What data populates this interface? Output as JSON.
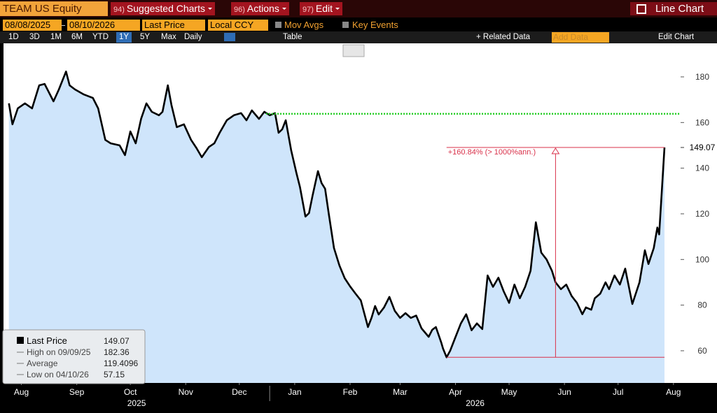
{
  "toolbar": {
    "security": "TEAM US Equity",
    "menus": [
      {
        "num": "94)",
        "label": "Suggested Charts"
      },
      {
        "num": "96)",
        "label": "Actions"
      },
      {
        "num": "97)",
        "label": "Edit"
      }
    ],
    "chart_type": "Line Chart",
    "start_date": "08/08/2025",
    "end_date": "08/10/2026",
    "field": "Last Price",
    "currency": "Local CCY",
    "mov_avgs": "Mov Avgs",
    "key_events": "Key Events",
    "periods": [
      "1D",
      "3D",
      "1M",
      "6M",
      "YTD",
      "1Y",
      "5Y",
      "Max"
    ],
    "selected": "1Y",
    "frequency": "Daily",
    "table": "Table",
    "related_data": "+ Related Data",
    "add_data": "Add Data",
    "edit_chart": "Edit Chart"
  },
  "chart_data": {
    "type": "line",
    "x": [
      "2025-08-08",
      "2025-08-10",
      "2025-08-13",
      "2025-08-17",
      "2025-08-21",
      "2025-08-25",
      "2025-08-28",
      "2025-09-02",
      "2025-09-05",
      "2025-09-09",
      "2025-09-11",
      "2025-09-14",
      "2025-09-19",
      "2025-09-24",
      "2025-09-27",
      "2025-10-01",
      "2025-10-04",
      "2025-10-09",
      "2025-10-12",
      "2025-10-15",
      "2025-10-18",
      "2025-10-21",
      "2025-10-24",
      "2025-10-27",
      "2025-10-31",
      "2025-11-02",
      "2025-11-05",
      "2025-11-07",
      "2025-11-10",
      "2025-11-14",
      "2025-11-18",
      "2025-11-21",
      "2025-11-24",
      "2025-11-28",
      "2025-12-01",
      "2025-12-04",
      "2025-12-08",
      "2025-12-12",
      "2025-12-16",
      "2025-12-19",
      "2025-12-22",
      "2025-12-26",
      "2025-12-29",
      "2026-01-01",
      "2026-01-04",
      "2026-01-06",
      "2026-01-08",
      "2026-01-10",
      "2026-01-13",
      "2026-01-16",
      "2026-01-18",
      "2026-01-21",
      "2026-01-23",
      "2026-01-25",
      "2026-01-28",
      "2026-01-30",
      "2026-02-01",
      "2026-02-03",
      "2026-02-06",
      "2026-02-09",
      "2026-02-12",
      "2026-02-15",
      "2026-02-18",
      "2026-02-21",
      "2026-02-25",
      "2026-02-27",
      "2026-03-01",
      "2026-03-03",
      "2026-03-06",
      "2026-03-09",
      "2026-03-12",
      "2026-03-15",
      "2026-03-18",
      "2026-03-21",
      "2026-03-24",
      "2026-03-27",
      "2026-03-31",
      "2026-04-02",
      "2026-04-04",
      "2026-04-07",
      "2026-04-08",
      "2026-04-10",
      "2026-04-12",
      "2026-04-15",
      "2026-04-18",
      "2026-04-21",
      "2026-04-24",
      "2026-04-27",
      "2026-04-30",
      "2026-05-03",
      "2026-05-06",
      "2026-05-09",
      "2026-05-12",
      "2026-05-15",
      "2026-05-18",
      "2026-05-21",
      "2026-05-24",
      "2026-05-27",
      "2026-05-30",
      "2026-06-02",
      "2026-06-05",
      "2026-06-08",
      "2026-06-10",
      "2026-06-13",
      "2026-06-16",
      "2026-06-19",
      "2026-06-22",
      "2026-06-25",
      "2026-06-27",
      "2026-06-30",
      "2026-07-02",
      "2026-07-05",
      "2026-07-08",
      "2026-07-10",
      "2026-07-13",
      "2026-07-16",
      "2026-07-19",
      "2026-07-23",
      "2026-07-27",
      "2026-07-30",
      "2026-08-01",
      "2026-08-04",
      "2026-08-06",
      "2026-08-07",
      "2026-08-10"
    ],
    "series": [
      {
        "name": "Last Price",
        "color": "#000000",
        "fill": "#cfe5fb",
        "values": [
          168.4,
          159.2,
          166.2,
          168.4,
          166.2,
          176.3,
          176.9,
          169.3,
          174.5,
          182.36,
          176.3,
          174.5,
          172.3,
          170.8,
          166.2,
          152.4,
          150.9,
          150,
          145.7,
          156.1,
          150.9,
          161.6,
          168.4,
          164.7,
          163.2,
          164.7,
          176.3,
          167.8,
          158,
          159.2,
          152.4,
          148.8,
          144.8,
          149.3,
          150.9,
          155.5,
          161,
          163.2,
          164.1,
          161,
          165.3,
          161.6,
          164.7,
          163.2,
          164.1,
          155.5,
          157,
          161,
          147.9,
          137.8,
          131.6,
          118.8,
          120.3,
          128,
          138.7,
          133.5,
          131,
          120.3,
          105,
          97.4,
          91.8,
          88.2,
          85.1,
          82.1,
          70.4,
          74.4,
          79.6,
          75.9,
          79,
          83.6,
          77.5,
          74.4,
          76.5,
          74.4,
          75.4,
          69.8,
          66.1,
          69.2,
          70.4,
          63.7,
          61,
          57.15,
          60,
          66,
          72,
          76,
          69,
          72,
          69.5,
          93,
          88,
          92,
          86,
          81,
          89,
          83,
          88,
          95,
          116.3,
          103,
          100,
          95,
          90,
          87,
          89,
          84,
          81,
          76,
          79,
          78,
          83,
          85,
          90,
          87,
          93,
          89,
          96,
          80.5,
          90,
          104,
          98,
          105,
          114,
          111,
          149.07
        ]
      }
    ],
    "xlim": [
      "2025-08-05",
      "2026-08-19"
    ],
    "ylim": [
      45.9,
      194.7
    ],
    "yticks": [
      60,
      80,
      100,
      120,
      140,
      160,
      180
    ],
    "xticks": [
      {
        "value": "2025-08-15",
        "label": "Aug"
      },
      {
        "value": "2025-09-15",
        "label": "Sep"
      },
      {
        "value": "2025-10-15",
        "label": "Oct"
      },
      {
        "value": "2025-11-15",
        "label": "Nov"
      },
      {
        "value": "2025-12-15",
        "label": "Dec"
      },
      {
        "value": "2026-01-15",
        "label": "Jan"
      },
      {
        "value": "2026-02-15",
        "label": "Feb"
      },
      {
        "value": "2026-03-15",
        "label": "Mar"
      },
      {
        "value": "2026-04-15",
        "label": "Apr"
      },
      {
        "value": "2026-05-15",
        "label": "May"
      },
      {
        "value": "2026-06-15",
        "label": "Jun"
      },
      {
        "value": "2026-07-15",
        "label": "Jul"
      },
      {
        "value": "2026-08-15",
        "label": "Aug"
      }
    ],
    "year_labels": [
      "2025",
      "2026"
    ],
    "reference_line": {
      "value": 163.8,
      "color": "#22cc22",
      "start": "2025-12-30"
    },
    "annotation": {
      "text": "+160.84% (> 1000%ann.)",
      "color": "#d9314a"
    },
    "legend": {
      "items": [
        {
          "label": "Last Price"
        },
        {
          "label": "High on 09/09/25"
        },
        {
          "label": "Average",
          "value": 119.4096
        },
        {
          "label": "Low on 04/10/26"
        }
      ]
    },
    "grid": false
  }
}
